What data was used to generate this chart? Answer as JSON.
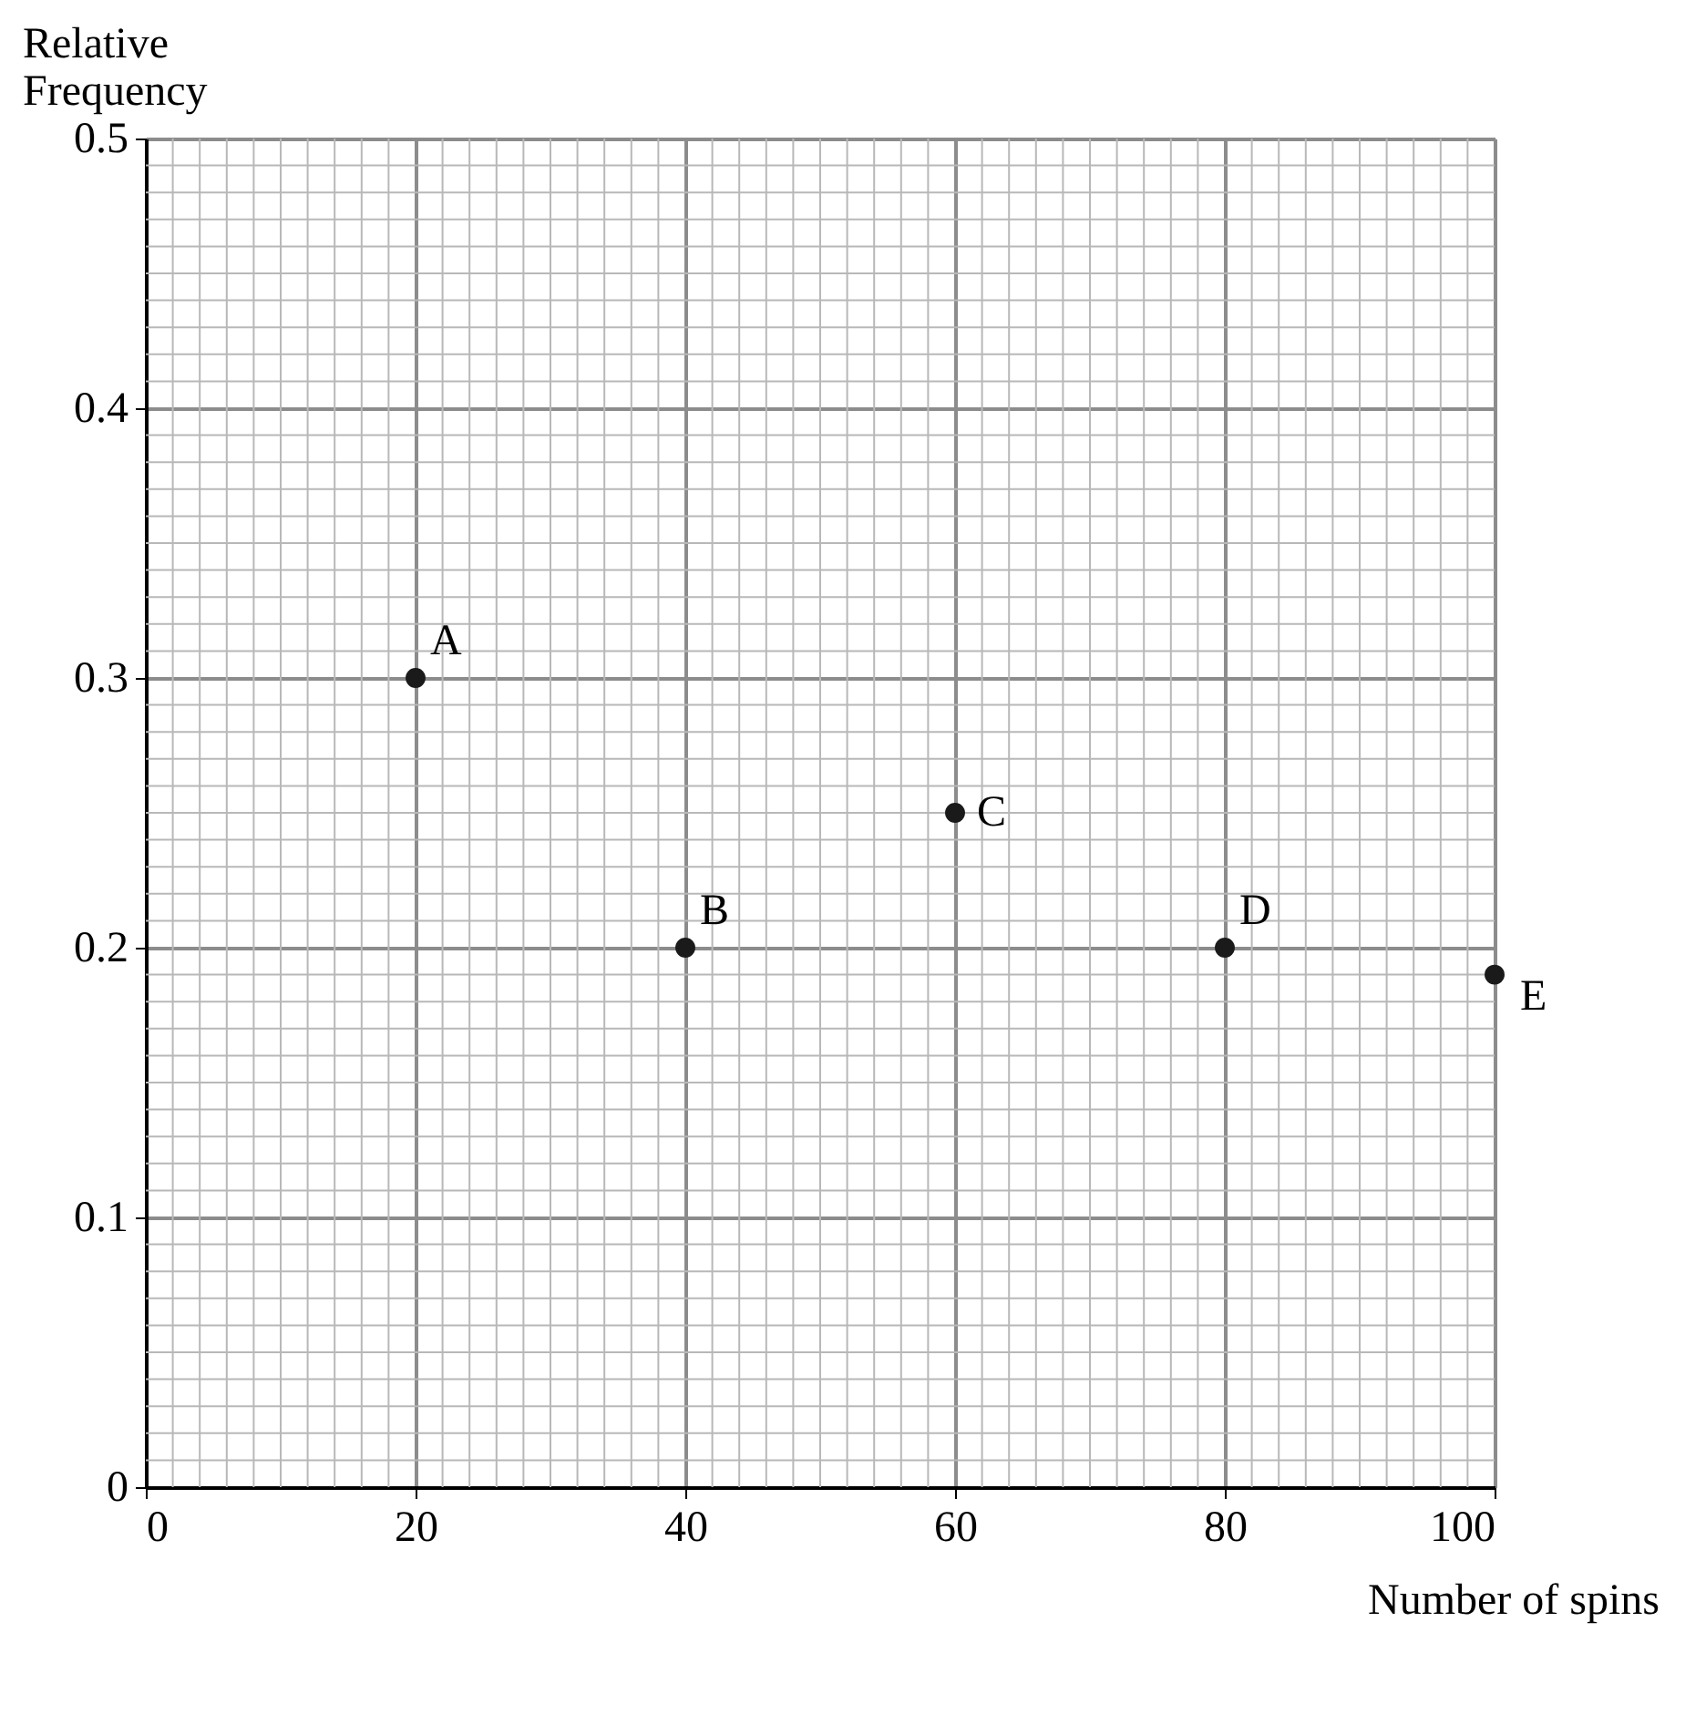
{
  "chart_data": {
    "type": "scatter",
    "xlabel": "Number of spins",
    "ylabel": "Relative\nFrequency",
    "x": [
      20,
      40,
      60,
      80,
      100
    ],
    "series": [
      {
        "color": "#1a1a1a",
        "values": [
          0.3,
          0.2,
          0.25,
          0.2,
          0.19
        ]
      }
    ],
    "xlim": [
      0,
      100
    ],
    "ylim": [
      0,
      0.5
    ],
    "xticks": [
      0,
      20,
      40,
      60,
      80,
      100
    ],
    "yticks": [
      {
        "value": 0,
        "label": "0"
      },
      0.1,
      0.2,
      0.3,
      0.4,
      0.5
    ],
    "grid": true,
    "marker": "circle",
    "annotations": [
      {
        "text": "A",
        "x": 20,
        "y": 0.3
      },
      {
        "text": "B",
        "x": 40,
        "y": 0.2
      },
      {
        "text": "C",
        "x": 60,
        "y": 0.25
      },
      {
        "text": "D",
        "x": 80,
        "y": 0.2
      },
      {
        "text": "E",
        "x": 100,
        "y": 0.19
      }
    ]
  }
}
